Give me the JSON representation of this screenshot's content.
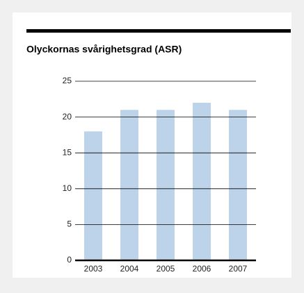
{
  "chart_data": {
    "type": "bar",
    "title": "Olyckornas svårighetsgrad (ASR)",
    "categories": [
      "2003",
      "2004",
      "2005",
      "2006",
      "2007"
    ],
    "values": [
      18,
      21,
      21,
      22,
      21
    ],
    "color": "#bcd3ea",
    "ylim": [
      0,
      25
    ],
    "yticks": [
      0,
      5,
      10,
      15,
      20,
      25
    ],
    "grid": true
  }
}
